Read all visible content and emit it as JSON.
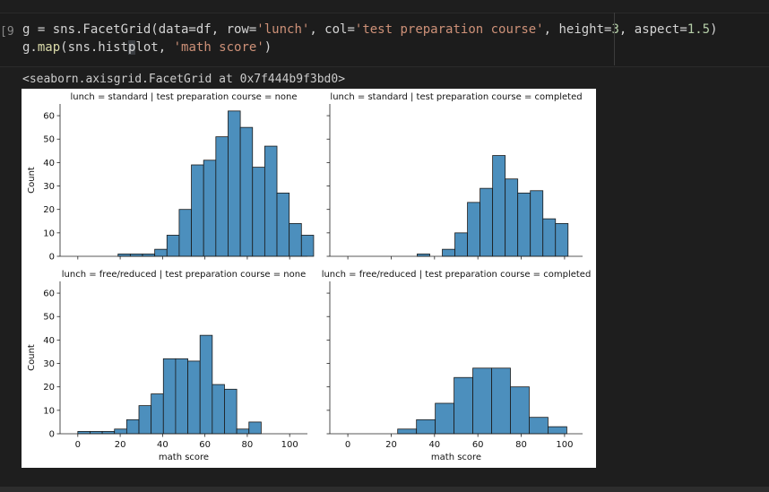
{
  "notebook": {
    "execution_count_fragment": "9]",
    "code_lines": [
      [
        {
          "t": "g = sns.FacetGrid(data=df, row=",
          "c": "kw"
        },
        {
          "t": "'lunch'",
          "c": "str"
        },
        {
          "t": ", col=",
          "c": "kw"
        },
        {
          "t": "'test preparation course'",
          "c": "str"
        },
        {
          "t": ", height=",
          "c": "kw"
        },
        {
          "t": "3",
          "c": "num"
        },
        {
          "t": ", aspect=",
          "c": "kw"
        },
        {
          "t": "1.5",
          "c": "num"
        },
        {
          "t": ")",
          "c": "kw"
        }
      ],
      [
        {
          "t": "g.",
          "c": "kw"
        },
        {
          "t": "map",
          "c": "fn"
        },
        {
          "t": "(sns.hist",
          "c": "kw"
        },
        {
          "t": "p",
          "c": "cursor"
        },
        {
          "t": "lot, ",
          "c": "kw"
        },
        {
          "t": "'math score'",
          "c": "str"
        },
        {
          "t": ")",
          "c": "kw"
        }
      ]
    ],
    "output_text": "<seaborn.axisgrid.FacetGrid at 0x7f444b9f3bd0>"
  },
  "chart_data": {
    "type": "bar",
    "bar_color": "#4c8fbd",
    "bar_edge_color": "#1a1a1a",
    "xlabel": "math score",
    "ylabel": "Count",
    "xlim": [
      -5,
      105
    ],
    "ylim": [
      0,
      65
    ],
    "xticks": [
      0,
      20,
      40,
      60,
      80,
      100
    ],
    "yticks": [
      0,
      10,
      20,
      30,
      40,
      50,
      60
    ],
    "panels": [
      {
        "title": "lunch = standard | test preparation course = none",
        "bin_start": 19,
        "bin_width": 5.77,
        "values": [
          1,
          1,
          1,
          3,
          9,
          20,
          39,
          41,
          51,
          62,
          55,
          38,
          47,
          27,
          14,
          9
        ]
      },
      {
        "title": "lunch = standard | test preparation course = completed",
        "bin_start": 32,
        "bin_width": 5.8,
        "values": [
          1,
          0,
          3,
          10,
          23,
          29,
          43,
          33,
          27,
          28,
          16,
          14
        ]
      },
      {
        "title": "lunch = free/reduced | test preparation course = none",
        "bin_start": 0,
        "bin_width": 5.77,
        "values": [
          1,
          1,
          1,
          2,
          6,
          12,
          17,
          32,
          32,
          31,
          42,
          21,
          19,
          2,
          5
        ]
      },
      {
        "title": "lunch = free/reduced | test preparation course = completed",
        "bin_start": 23,
        "bin_width": 8.67,
        "values": [
          2,
          6,
          13,
          24,
          28,
          28,
          20,
          7,
          3
        ]
      }
    ]
  }
}
